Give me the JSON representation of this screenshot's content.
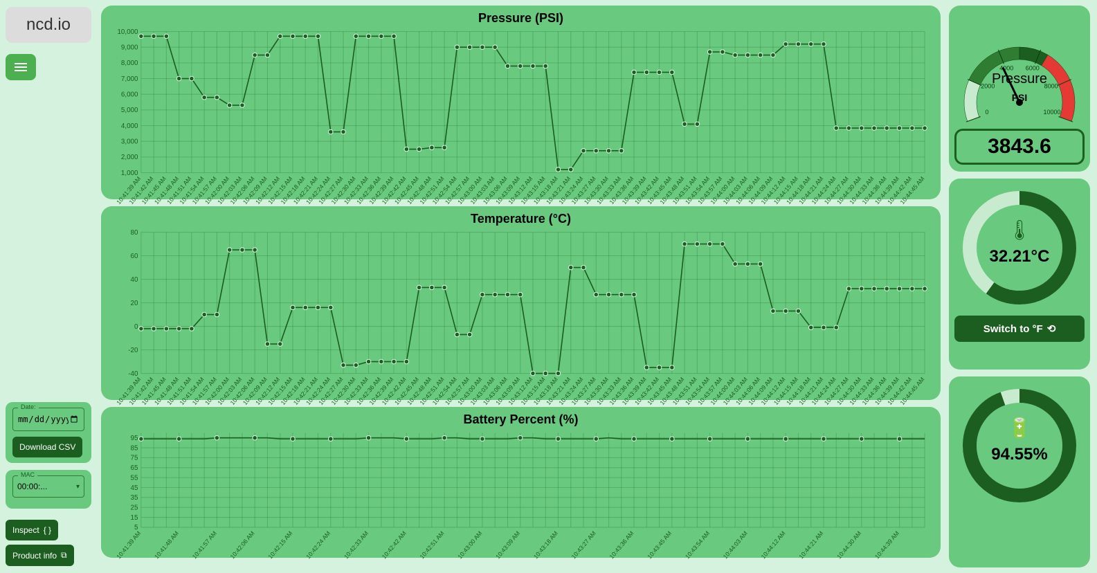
{
  "brand": "ncd.io",
  "sidebar": {
    "date_label": "Date:",
    "date_placeholder": "mm/dd/yyyy",
    "download_label": "Download CSV",
    "mac_label": "MAC",
    "mac_value": "00:00:...",
    "inspect_label": "Inspect",
    "product_info_label": "Product info"
  },
  "charts": {
    "x_labels": [
      "10:41:39 AM",
      "10:41:42 AM",
      "10:41:45 AM",
      "10:41:48 AM",
      "10:41:51 AM",
      "10:41:54 AM",
      "10:41:57 AM",
      "10:42:00 AM",
      "10:42:03 AM",
      "10:42:06 AM",
      "10:42:09 AM",
      "10:42:12 AM",
      "10:42:15 AM",
      "10:42:18 AM",
      "10:42:21 AM",
      "10:42:24 AM",
      "10:42:27 AM",
      "10:42:30 AM",
      "10:42:33 AM",
      "10:42:36 AM",
      "10:42:39 AM",
      "10:42:42 AM",
      "10:42:45 AM",
      "10:42:48 AM",
      "10:42:51 AM",
      "10:42:54 AM",
      "10:42:57 AM",
      "10:43:00 AM",
      "10:43:03 AM",
      "10:43:06 AM",
      "10:43:09 AM",
      "10:43:12 AM",
      "10:43:15 AM",
      "10:43:18 AM",
      "10:43:21 AM",
      "10:43:24 AM",
      "10:43:27 AM",
      "10:43:30 AM",
      "10:43:33 AM",
      "10:43:36 AM",
      "10:43:39 AM",
      "10:43:42 AM",
      "10:43:45 AM",
      "10:43:48 AM",
      "10:43:51 AM",
      "10:43:54 AM",
      "10:43:57 AM",
      "10:44:00 AM",
      "10:44:03 AM",
      "10:44:06 AM",
      "10:44:09 AM",
      "10:44:12 AM",
      "10:44:15 AM",
      "10:44:18 AM",
      "10:44:21 AM",
      "10:44:24 AM",
      "10:44:27 AM",
      "10:44:30 AM",
      "10:44:33 AM",
      "10:44:36 AM",
      "10:44:39 AM",
      "10:44:42 AM",
      "10:44:45 AM"
    ],
    "pressure": {
      "title": "Pressure (PSI)",
      "ymin": 1000,
      "ymax": 10000,
      "ystep": 1000,
      "values": [
        9700,
        9700,
        9700,
        7000,
        7000,
        5800,
        5800,
        5300,
        5300,
        8500,
        8500,
        9700,
        9700,
        9700,
        9700,
        3600,
        3600,
        9700,
        9700,
        9700,
        9700,
        2500,
        2500,
        2600,
        2600,
        9000,
        9000,
        9000,
        9000,
        7800,
        7800,
        7800,
        7800,
        1200,
        1200,
        2400,
        2400,
        2400,
        2400,
        7400,
        7400,
        7400,
        7400,
        4100,
        4100,
        8700,
        8700,
        8500,
        8500,
        8500,
        8500,
        9200,
        9200,
        9200,
        9200,
        3843,
        3843,
        3843,
        3843,
        3843,
        3843,
        3843,
        3843
      ]
    },
    "temperature": {
      "title": "Temperature (°C)",
      "ymin": -40,
      "ymax": 80,
      "ystep": 20,
      "values": [
        -2,
        -2,
        -2,
        -2,
        -2,
        10,
        10,
        65,
        65,
        65,
        -15,
        -15,
        16,
        16,
        16,
        16,
        -33,
        -33,
        -30,
        -30,
        -30,
        -30,
        33,
        33,
        33,
        -7,
        -7,
        27,
        27,
        27,
        27,
        -40,
        -40,
        -40,
        50,
        50,
        27,
        27,
        27,
        27,
        -35,
        -35,
        -35,
        70,
        70,
        70,
        70,
        53,
        53,
        53,
        13,
        13,
        13,
        -1,
        -1,
        -1,
        32,
        32,
        32,
        32,
        32,
        32,
        32
      ]
    },
    "battery": {
      "title": "Battery Percent (%)",
      "ymin": 5,
      "ymax": 100,
      "ystep": 10,
      "values": [
        94,
        94,
        94,
        94,
        94,
        94,
        95,
        95,
        95,
        95,
        95,
        94,
        94,
        94,
        94,
        94,
        94,
        94,
        95,
        95,
        95,
        94,
        94,
        94,
        95,
        95,
        94,
        94,
        94,
        94,
        95,
        95,
        94,
        94,
        94,
        94,
        94,
        95,
        94,
        94,
        94,
        94,
        94,
        94,
        94,
        94,
        94,
        94,
        94,
        94,
        94,
        94,
        94,
        94,
        94,
        94,
        94,
        94,
        94,
        94,
        94,
        94,
        94
      ]
    },
    "stroke": "#1b5e20",
    "grid_color": "rgba(0,64,0,0.18)",
    "bg": "#68c97f",
    "point_radius": 3,
    "x_label_every": 1
  },
  "gauges": {
    "pressure": {
      "title": "Pressure",
      "unit": "PSI",
      "value_text": "3843.6",
      "min": 0,
      "max": 10000,
      "ticks": [
        "0",
        "2000",
        "4000",
        "6000",
        "8000",
        "10000"
      ],
      "zones": [
        {
          "from": 0,
          "to": 2000,
          "color": "#c8ebd0"
        },
        {
          "from": 2000,
          "to": 5000,
          "color": "#2e7d32"
        },
        {
          "from": 5000,
          "to": 6400,
          "color": "#1b5e20"
        },
        {
          "from": 6400,
          "to": 10000,
          "color": "#e53935"
        }
      ],
      "needle_value": 3843.6
    },
    "temperature": {
      "value_text": "32.21°C",
      "percent": 60,
      "ring_fg": "#1b5e20",
      "ring_bg": "#c8ebd0",
      "switch_label": "Switch to °F"
    },
    "battery": {
      "value_text": "94.55%",
      "percent": 94.55,
      "ring_fg": "#1b5e20",
      "ring_bg": "#c8ebd0"
    }
  }
}
